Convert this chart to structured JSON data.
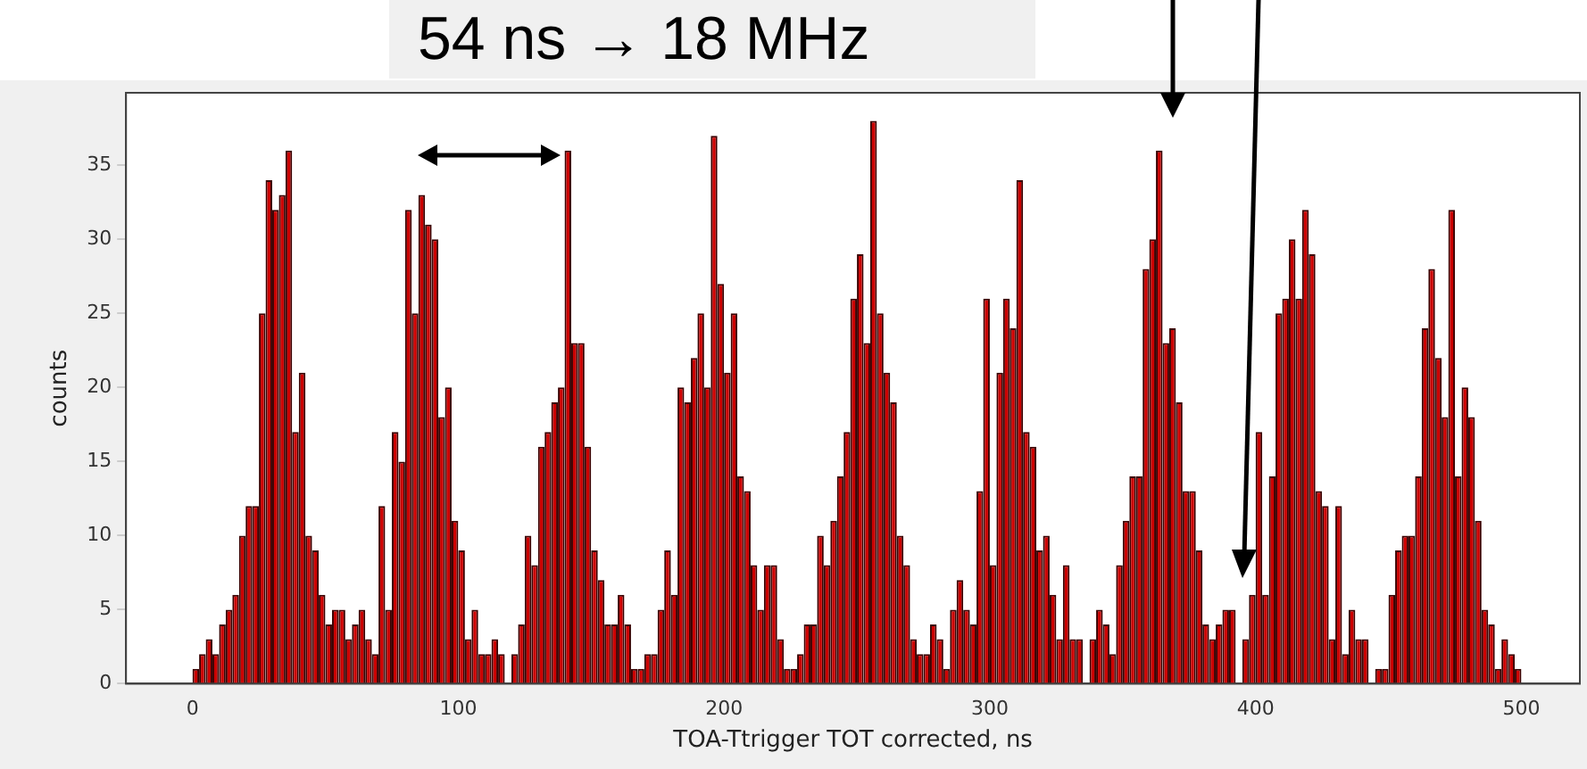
{
  "chart_data": {
    "type": "histogram",
    "xlabel": "TOA-Ttrigger TOT corrected, ns",
    "ylabel": "counts",
    "annotations": [
      "54 ns → 18 MHz"
    ],
    "color": "#cc0000",
    "bins": [
      0,
      2.5,
      5,
      7.5,
      10,
      12.5,
      15,
      17.5,
      20,
      22.5,
      25,
      27.5,
      30,
      32.5,
      35,
      37.5,
      40,
      42.5,
      45,
      47.5,
      50,
      52.5,
      55,
      57.5,
      60,
      62.5,
      65,
      67.5,
      70,
      72.5,
      75,
      77.5,
      80,
      82.5,
      85,
      87.5,
      90,
      92.5,
      95,
      97.5,
      100,
      102.5,
      105,
      107.5,
      110,
      112.5,
      115,
      117.5,
      120,
      122.5,
      125,
      127.5,
      130,
      132.5,
      135,
      137.5,
      140,
      142.5,
      145,
      147.5,
      150,
      152.5,
      155,
      157.5,
      160,
      162.5,
      165,
      167.5,
      170,
      172.5,
      175,
      177.5,
      180,
      182.5,
      185,
      187.5,
      190,
      192.5,
      195,
      197.5,
      200,
      202.5,
      205,
      207.5,
      210,
      212.5,
      215,
      217.5,
      220,
      222.5,
      225,
      227.5,
      230,
      232.5,
      235,
      237.5,
      240,
      242.5,
      245,
      247.5,
      250,
      252.5,
      255,
      257.5,
      260,
      262.5,
      265,
      267.5,
      270,
      272.5,
      275,
      277.5,
      280,
      282.5,
      285,
      287.5,
      290,
      292.5,
      295,
      297.5,
      300,
      302.5,
      305,
      307.5,
      310,
      312.5,
      315,
      317.5,
      320,
      322.5,
      325,
      327.5,
      330,
      332.5,
      335,
      337.5,
      340,
      342.5,
      345,
      347.5,
      350,
      352.5,
      355,
      357.5,
      360,
      362.5,
      365,
      367.5,
      370,
      372.5,
      375,
      377.5,
      380,
      382.5,
      385,
      387.5,
      390,
      392.5,
      395,
      397.5,
      400,
      402.5,
      405,
      407.5,
      410,
      412.5,
      415,
      417.5,
      420,
      422.5,
      425,
      427.5,
      430,
      432.5,
      435,
      437.5,
      440,
      442.5,
      445,
      447.5,
      450,
      452.5,
      455,
      457.5,
      460,
      462.5,
      465,
      467.5,
      470,
      472.5,
      475,
      477.5,
      480,
      482.5,
      485,
      487.5,
      490,
      492.5,
      495,
      497.5,
      500
    ],
    "values": [
      1,
      2,
      3,
      2,
      4,
      5,
      6,
      10,
      12,
      12,
      25,
      34,
      32,
      33,
      36,
      17,
      21,
      10,
      9,
      6,
      4,
      5,
      5,
      3,
      4,
      5,
      3,
      2,
      12,
      5,
      17,
      15,
      32,
      25,
      33,
      31,
      30,
      18,
      20,
      11,
      9,
      3,
      5,
      2,
      2,
      3,
      2,
      0,
      2,
      4,
      10,
      8,
      16,
      17,
      19,
      20,
      36,
      23,
      23,
      16,
      9,
      7,
      4,
      4,
      6,
      4,
      1,
      1,
      2,
      2,
      5,
      9,
      6,
      20,
      19,
      22,
      25,
      20,
      37,
      27,
      21,
      25,
      14,
      13,
      8,
      5,
      8,
      8,
      3,
      1,
      1,
      2,
      4,
      4,
      10,
      8,
      11,
      14,
      17,
      26,
      29,
      23,
      38,
      25,
      21,
      19,
      10,
      8,
      3,
      2,
      2,
      4,
      3,
      1,
      5,
      7,
      5,
      4,
      13,
      26,
      8,
      21,
      26,
      24,
      34,
      17,
      16,
      9,
      10,
      6,
      3,
      8,
      3,
      3,
      0,
      3,
      5,
      4,
      2,
      8,
      11,
      14,
      14,
      28,
      30,
      36,
      23,
      24,
      19,
      13,
      13,
      9,
      4,
      3,
      4,
      5,
      5,
      0,
      3,
      6,
      17,
      6,
      14,
      25,
      26,
      30,
      26,
      32,
      29,
      13,
      12,
      3,
      12,
      2,
      5,
      3,
      3,
      0,
      1,
      1,
      6,
      9,
      10,
      10,
      14,
      24,
      28,
      22,
      18,
      32,
      14,
      20,
      18,
      11,
      5,
      4,
      1,
      3,
      2,
      1
    ],
    "xlim": [
      -25,
      522
    ],
    "xticks": [
      0,
      100,
      200,
      300,
      400,
      500
    ],
    "ylim": [
      0,
      39.9
    ],
    "yticks": [
      0,
      5,
      10,
      15,
      20,
      25,
      30,
      35
    ],
    "grid": false,
    "legend": false
  }
}
